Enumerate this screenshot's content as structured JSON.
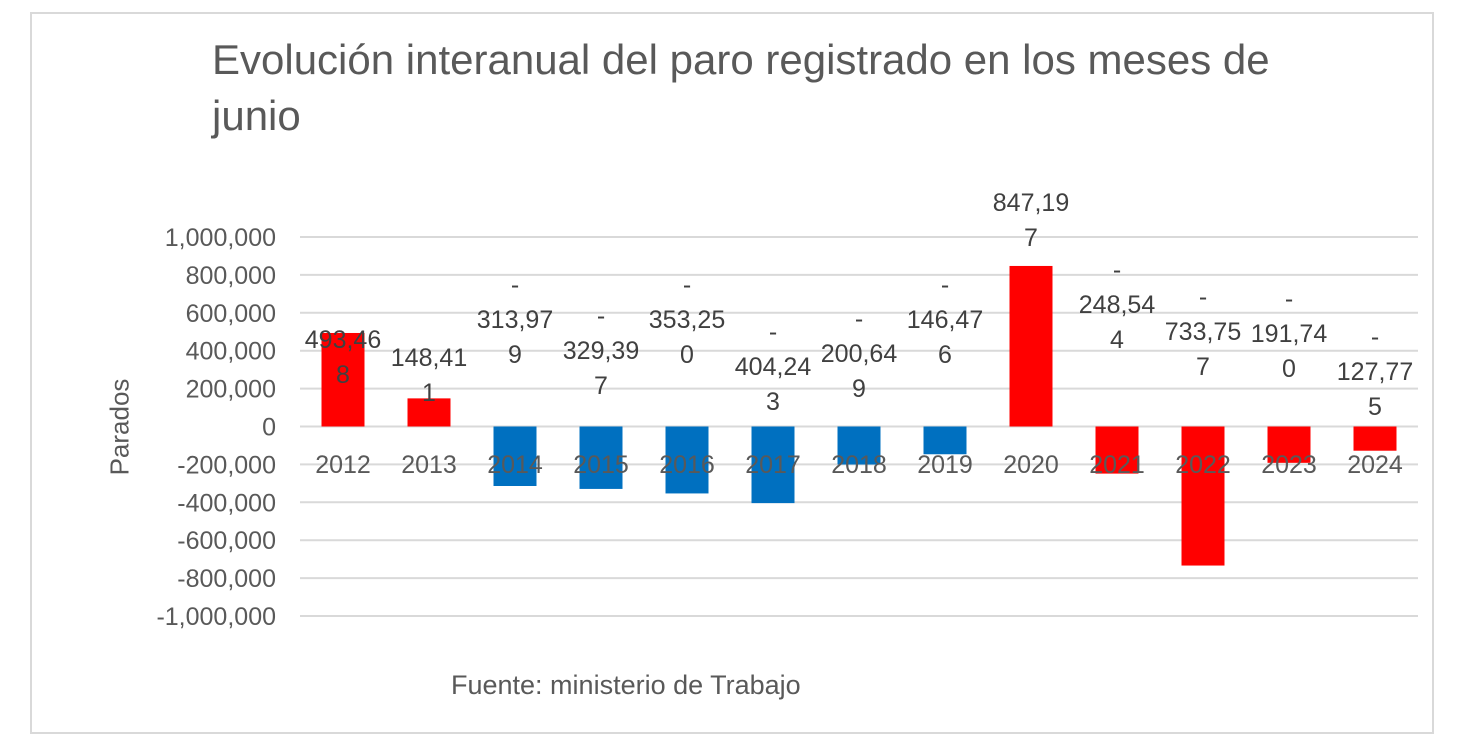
{
  "chart_data": {
    "type": "bar",
    "title": "Evolución interanual del paro registrado en los meses de junio",
    "xlabel": "",
    "ylabel": "Parados",
    "ylim": [
      -1000000,
      1000000
    ],
    "y_ticks": [
      1000000,
      800000,
      600000,
      400000,
      200000,
      0,
      -200000,
      -400000,
      -600000,
      -800000,
      -1000000
    ],
    "y_tick_labels": [
      "1,000,000",
      "800,000",
      "600,000",
      "400,000",
      "200,000",
      "0",
      "-200,000",
      "-400,000",
      "-600,000",
      "-800,000",
      "-1,000,000"
    ],
    "grid": true,
    "categories": [
      "2012",
      "2013",
      "2014",
      "2015",
      "2016",
      "2017",
      "2018",
      "2019",
      "2020",
      "2021",
      "2022",
      "2023",
      "2024"
    ],
    "values": [
      493468,
      148411,
      -313979,
      -329397,
      -353250,
      -404243,
      -200649,
      -146476,
      847197,
      -248544,
      -733757,
      -191740,
      -127775
    ],
    "colors": [
      "#ff0000",
      "#ff0000",
      "#0070c0",
      "#0070c0",
      "#0070c0",
      "#0070c0",
      "#0070c0",
      "#0070c0",
      "#ff0000",
      "#ff0000",
      "#ff0000",
      "#ff0000",
      "#ff0000"
    ],
    "data_labels": [
      [
        "493,46",
        "8"
      ],
      [
        "148,41",
        "1"
      ],
      [
        "-",
        "313,97",
        "9"
      ],
      [
        "-",
        "329,39",
        "7"
      ],
      [
        "-",
        "353,25",
        "0"
      ],
      [
        "-",
        "404,24",
        "3"
      ],
      [
        "-",
        "200,64",
        "9"
      ],
      [
        "-",
        "146,47",
        "6"
      ],
      [
        "847,19",
        "7"
      ],
      [
        "-",
        "248,54",
        "4"
      ],
      [
        "-",
        "733,75",
        "7"
      ],
      [
        "-",
        "191,74",
        "0"
      ],
      [
        "-",
        "127,77",
        "5"
      ]
    ],
    "source": "Fuente: ministerio de Trabajo"
  }
}
